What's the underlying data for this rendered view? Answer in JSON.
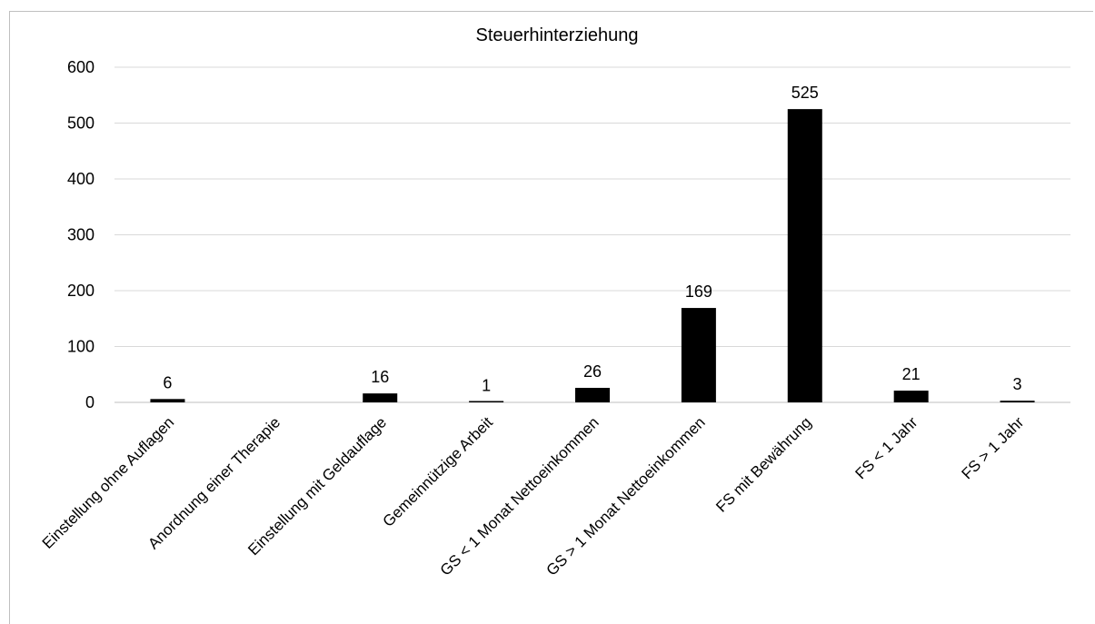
{
  "chart_data": {
    "type": "bar",
    "title": "Steuerhinterziehung",
    "xlabel": "",
    "ylabel": "",
    "ylim": [
      0,
      600
    ],
    "yticks": [
      0,
      100,
      200,
      300,
      400,
      500,
      600
    ],
    "grid": true,
    "legend": "none",
    "bar_color": "#000000",
    "categories": [
      "Einstellung ohne Auflagen",
      "Anordnung einer Therapie",
      "Einstellung mit Geldauflage",
      "Gemeinnützige Arbeit",
      "GS < 1 Monat Nettoeinkommen",
      "GS > 1 Monat Nettoeinkommen",
      "FS mit Bewährung",
      "FS < 1 Jahr",
      "FS > 1 Jahr"
    ],
    "values": [
      6,
      null,
      16,
      1,
      26,
      169,
      525,
      21,
      3
    ],
    "data_labels": [
      "6",
      "",
      "16",
      "1",
      "26",
      "169",
      "525",
      "21",
      "3"
    ]
  }
}
